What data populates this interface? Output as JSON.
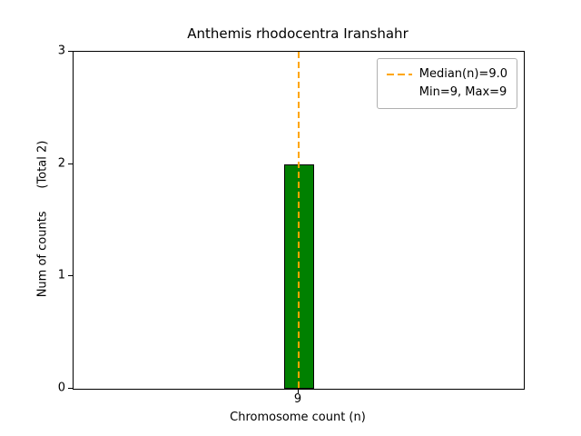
{
  "chart_data": {
    "type": "bar",
    "title": "Anthemis rhodocentra Iranshahr",
    "xlabel": "Chromosome count (n)",
    "ylabel": "Num of counts      (Total 2)",
    "categories": [
      "9"
    ],
    "values": [
      2
    ],
    "total": 2,
    "ylim": [
      0,
      3
    ],
    "yticks": [
      "0",
      "1",
      "2",
      "3"
    ],
    "grid": "off",
    "bar_color": "#008000",
    "bar_edge_color": "#000000",
    "median_line": {
      "at_category": "9",
      "value": 9.0,
      "style": "dashed",
      "color": "#FFA500"
    },
    "legend": {
      "position": "upper right",
      "entries": [
        {
          "label": "Median(n)=9.0",
          "sample": "dashed-line"
        },
        {
          "label": "Min=9, Max=9",
          "sample": "none"
        }
      ]
    }
  }
}
